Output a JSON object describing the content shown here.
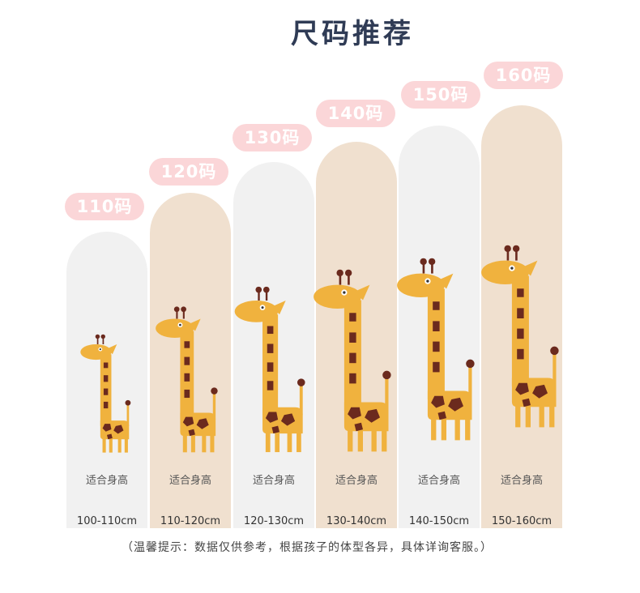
{
  "title": "尺码推荐",
  "fit_label": "适合身高",
  "sizes": [
    {
      "badge": "110码",
      "range": "100-110cm"
    },
    {
      "badge": "120码",
      "range": "110-120cm"
    },
    {
      "badge": "130码",
      "range": "120-130cm"
    },
    {
      "badge": "140码",
      "range": "130-140cm"
    },
    {
      "badge": "150码",
      "range": "140-150cm"
    },
    {
      "badge": "160码",
      "range": "150-160cm"
    }
  ],
  "note": "（温馨提示：数据仅供参考，根据孩子的体型各异，具体详询客服。）",
  "colors": {
    "badge_bg": "#fbd6d8",
    "column_light": "#f1f1f1",
    "column_tan": "#f0e0cf",
    "giraffe_body": "#f0b23e",
    "giraffe_spots": "#6b2a1e",
    "title": "#2f3b55"
  },
  "icons": [
    "giraffe-icon"
  ]
}
